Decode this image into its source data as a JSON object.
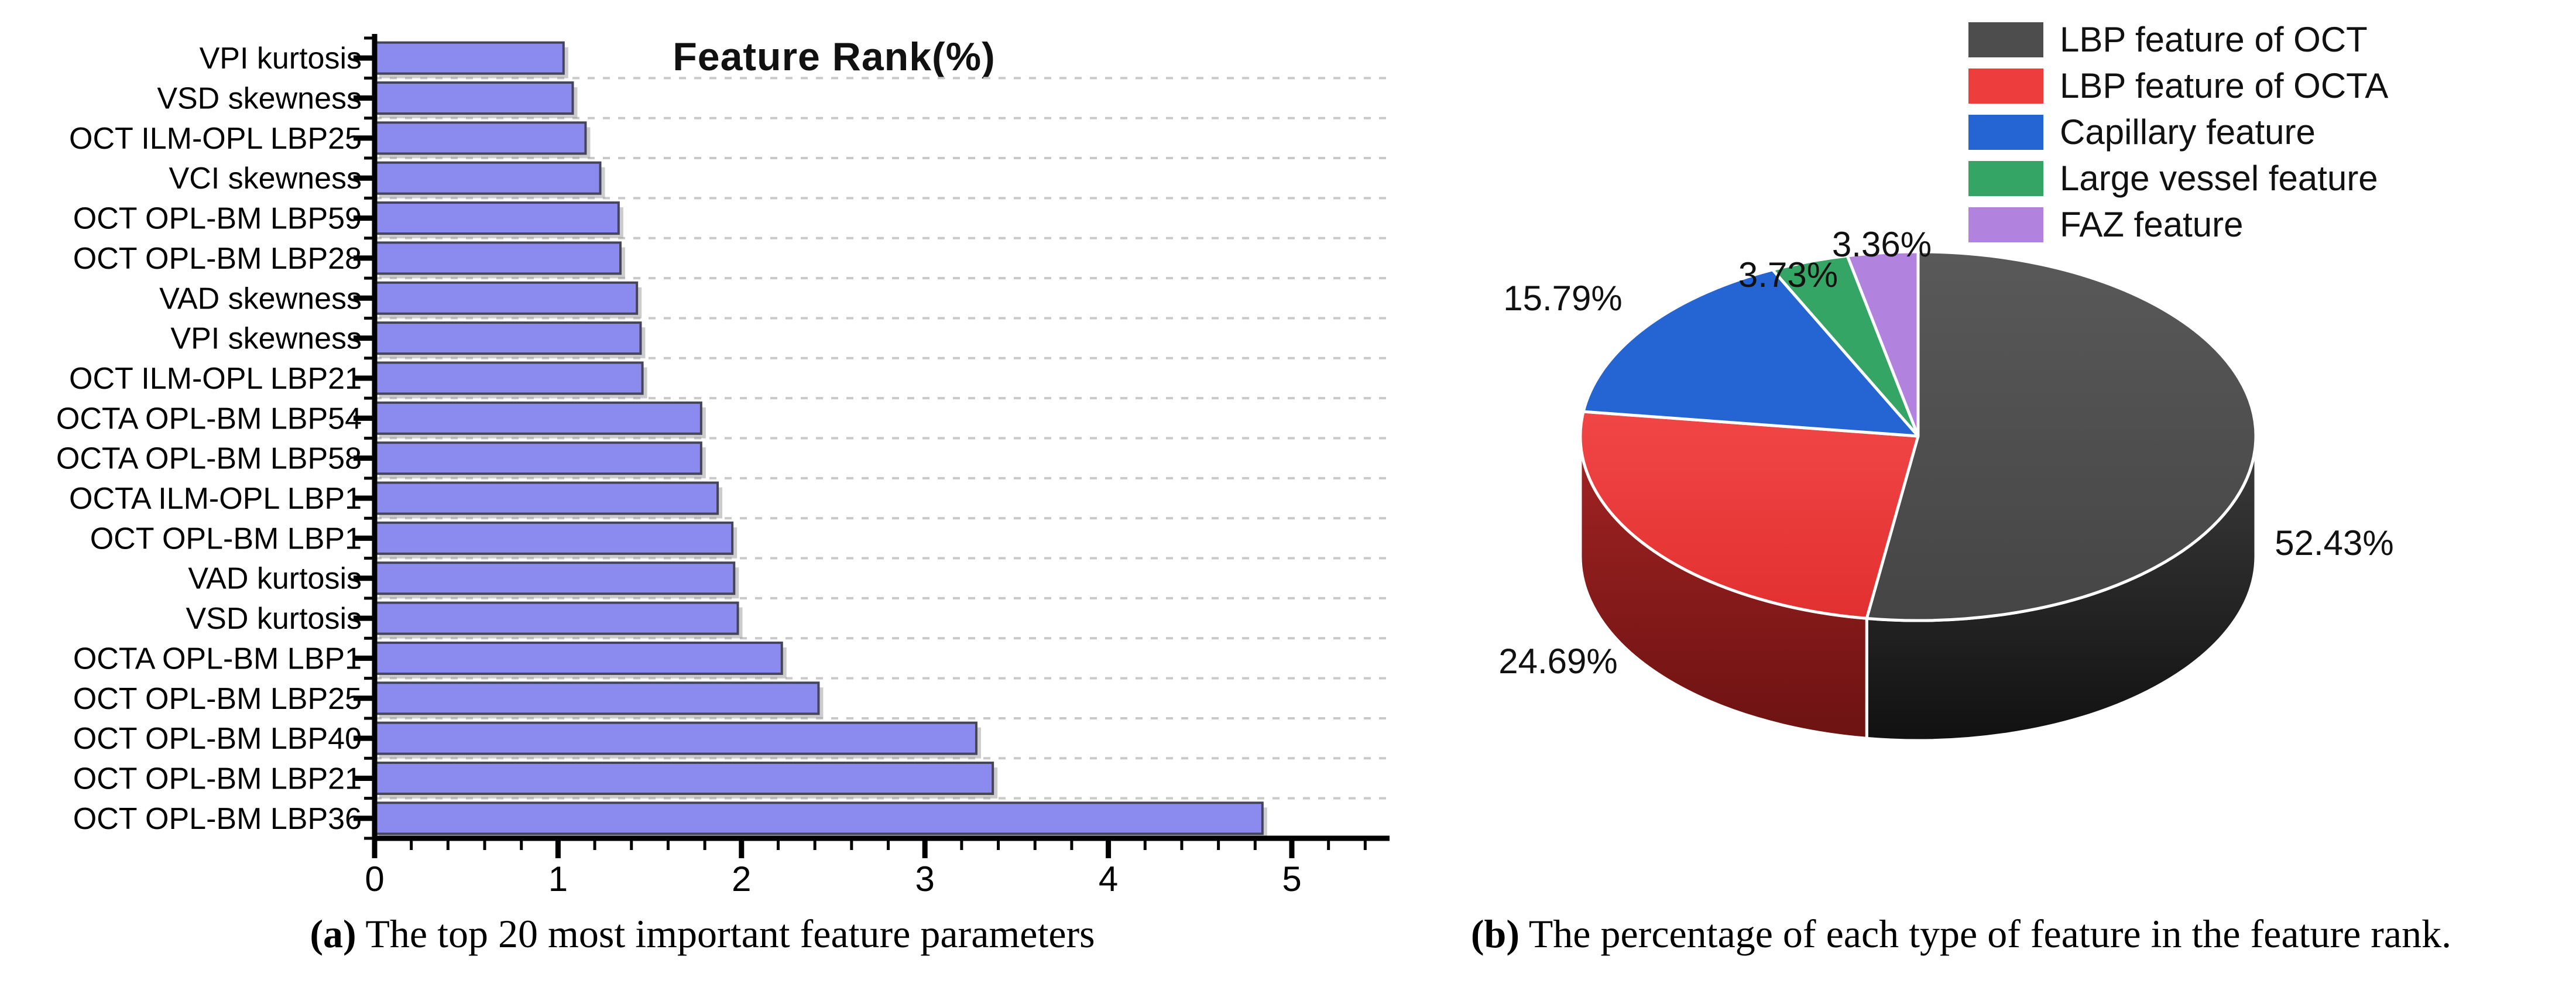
{
  "figure": {
    "caption_a_label": "(a)",
    "caption_a_text": " The top 20 most important feature parameters",
    "caption_b_label": "(b)",
    "caption_b_text": " The percentage of each type of feature in the feature rank."
  },
  "chart_data": [
    {
      "type": "bar",
      "orientation": "horizontal",
      "title": "Feature Rank(%)",
      "categories": [
        "VPI kurtosis",
        "VSD skewness",
        "OCT ILM-OPL LBP25",
        "VCI skewness",
        "OCT OPL-BM LBP59",
        "OCT OPL-BM LBP28",
        "VAD skewness",
        "VPI skewness",
        "OCT ILM-OPL LBP21",
        "OCTA OPL-BM LBP54",
        "OCTA OPL-BM LBP58",
        "OCTA ILM-OPL LBP1",
        "OCT OPL-BM LBP1",
        "VAD kurtosis",
        "VSD kurtosis",
        "OCTA OPL-BM LBP1",
        "OCT OPL-BM LBP25",
        "OCT OPL-BM LBP40",
        "OCT OPL-BM LBP21",
        "OCT OPL-BM LBP36"
      ],
      "values": [
        1.03,
        1.08,
        1.15,
        1.23,
        1.33,
        1.34,
        1.43,
        1.45,
        1.46,
        1.78,
        1.78,
        1.87,
        1.95,
        1.96,
        1.98,
        2.22,
        2.42,
        3.28,
        3.37,
        4.84
      ],
      "xlabel": "",
      "ylabel": "",
      "xlim": [
        0,
        5.5
      ],
      "xticks": [
        "0",
        "1",
        "2",
        "3",
        "4",
        "5"
      ],
      "xtick_values": [
        0,
        1,
        2,
        3,
        4,
        5
      ],
      "minor_tick_step": 0.2,
      "grid": "dashed-horizontal",
      "bar_color": "#8b8bef",
      "bar_border_color": "#45455a",
      "grid_color": "#c9c9c9"
    },
    {
      "type": "pie",
      "style": "3d",
      "clockwise_from_top": true,
      "categories": [
        "LBP feature of OCT",
        "LBP feature of OCTA",
        "Capillary feature",
        "Large vessel feature",
        "FAZ feature"
      ],
      "values": [
        52.43,
        24.69,
        15.79,
        3.73,
        3.36
      ],
      "display_labels": [
        "52.43%",
        "24.69%",
        "15.79%",
        "3.73%",
        "3.36%"
      ],
      "colors": [
        "#4d4d4d",
        "#ee3d3d",
        "#2465d3",
        "#35a566",
        "#b183de"
      ],
      "side_colors_dark": [
        "#141414",
        "#701414",
        "#1a4a9e",
        "#20744a",
        "#7e55a8"
      ],
      "legend_position": "top-right"
    }
  ],
  "legend": {
    "items": [
      {
        "label": "LBP feature of OCT",
        "color": "#4d4d4d"
      },
      {
        "label": "LBP feature of OCTA",
        "color": "#ee3d3d"
      },
      {
        "label": "Capillary feature",
        "color": "#2465d3"
      },
      {
        "label": "Large vessel feature",
        "color": "#35a566"
      },
      {
        "label": "FAZ feature",
        "color": "#b183de"
      }
    ]
  }
}
